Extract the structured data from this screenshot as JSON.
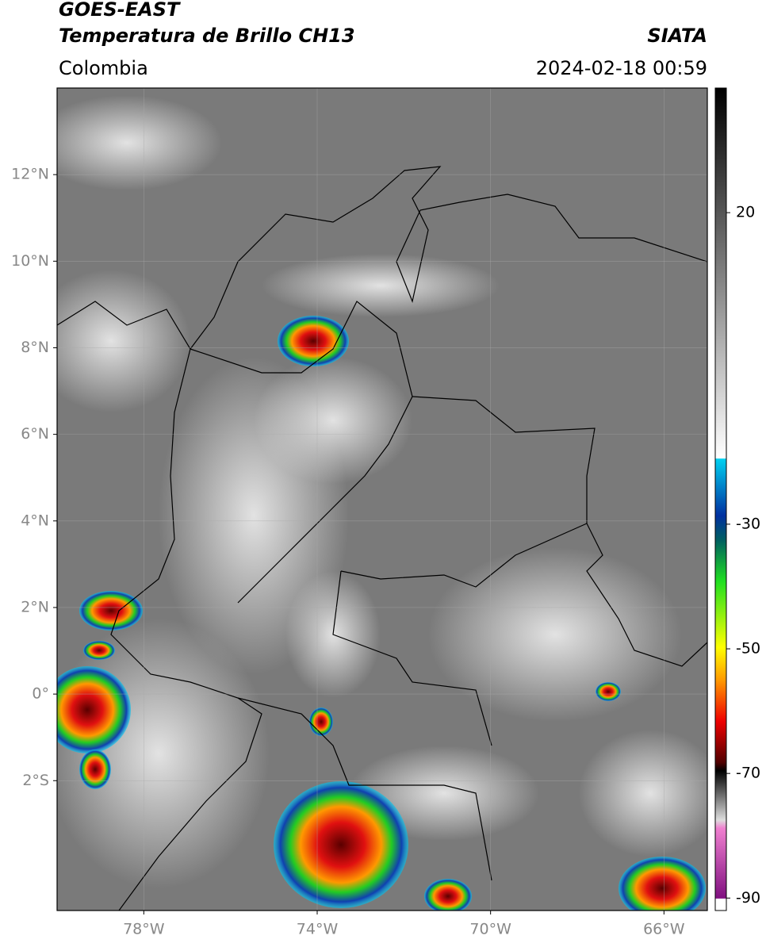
{
  "header": {
    "title": "GOES-EAST",
    "subtitle": "Temperatura de Brillo CH13",
    "region": "Colombia",
    "source": "SIATA",
    "datetime": "2024-02-18 00:59"
  },
  "map": {
    "xlim": [
      -80,
      -65
    ],
    "ylim": [
      -5,
      14
    ],
    "xticks": [
      {
        "value": -78,
        "label": "78°W"
      },
      {
        "value": -74,
        "label": "74°W"
      },
      {
        "value": -70,
        "label": "70°W"
      },
      {
        "value": -66,
        "label": "66°W"
      }
    ],
    "yticks": [
      {
        "value": 12,
        "label": "12°N"
      },
      {
        "value": 10,
        "label": "10°N"
      },
      {
        "value": 8,
        "label": "8°N"
      },
      {
        "value": 6,
        "label": "6°N"
      },
      {
        "value": 4,
        "label": "4°N"
      },
      {
        "value": 2,
        "label": "2°N"
      },
      {
        "value": 0,
        "label": "0°"
      },
      {
        "value": -2,
        "label": "2°S"
      }
    ]
  },
  "colorbar": {
    "lim": [
      -92,
      40
    ],
    "ticks": [
      20,
      -30,
      -50,
      -70,
      -90
    ]
  }
}
